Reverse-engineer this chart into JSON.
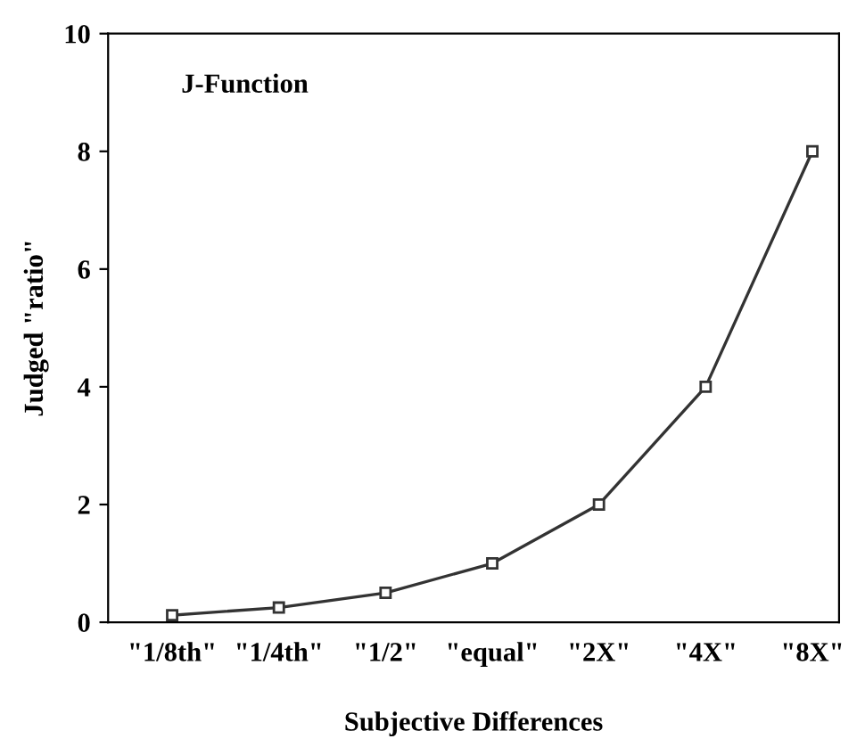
{
  "chart_data": {
    "type": "line",
    "title": "J-Function",
    "xlabel": "Subjective Differences",
    "ylabel": "Judged \"ratio\"",
    "categories": [
      "\"1/8th\"",
      "\"1/4th\"",
      "\"1/2\"",
      "\"equal\"",
      "\"2X\"",
      "\"4X\"",
      "\"8X\""
    ],
    "series": [
      {
        "color": "#333333",
        "values": [
          0.12,
          0.25,
          0.5,
          1,
          2,
          4,
          8
        ]
      }
    ],
    "ylim": [
      0,
      10
    ],
    "yticks": [
      0,
      2,
      4,
      6,
      8,
      10
    ],
    "marker": "square",
    "line_style": "solid",
    "grid": false,
    "legend": false
  }
}
